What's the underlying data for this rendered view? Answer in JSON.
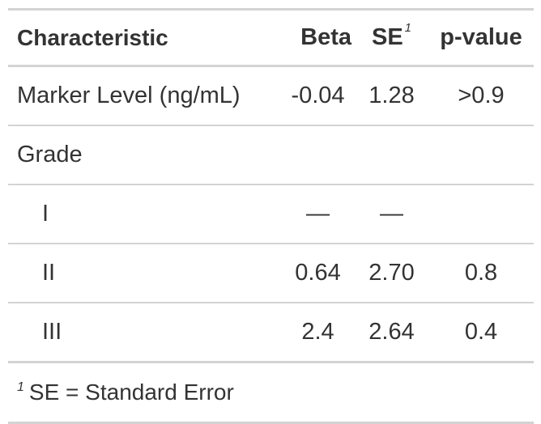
{
  "table": {
    "headers": {
      "characteristic": "Characteristic",
      "beta": "Beta",
      "se": "SE",
      "se_mark": "1",
      "p_value": "p-value"
    },
    "rows": [
      {
        "label": "Marker Level (ng/mL)",
        "beta": "-0.04",
        "se": "1.28",
        "p": ">0.9"
      },
      {
        "label": "Grade",
        "beta": "",
        "se": "",
        "p": ""
      },
      {
        "label": "I",
        "beta": "—",
        "se": "—",
        "p": ""
      },
      {
        "label": "II",
        "beta": "0.64",
        "se": "2.70",
        "p": "0.8"
      },
      {
        "label": "III",
        "beta": "2.4",
        "se": "2.64",
        "p": "0.4"
      }
    ],
    "footnote": {
      "mark": "1",
      "text": "SE = Standard Error"
    }
  }
}
